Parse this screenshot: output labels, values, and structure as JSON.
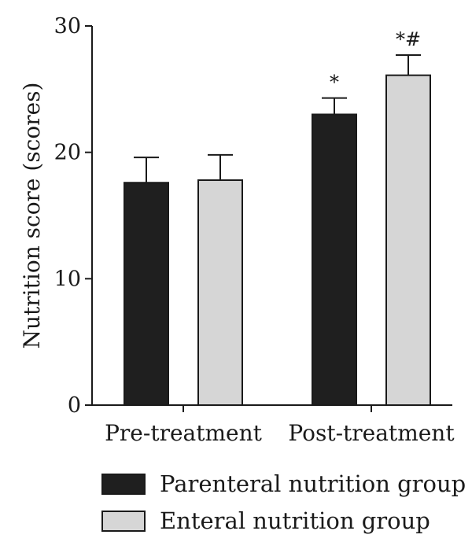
{
  "chart_data": {
    "type": "bar",
    "ylabel": "Nutrition score (scores)",
    "xlabel": "",
    "ylim": [
      0,
      30
    ],
    "yticks": [
      "0",
      "10",
      "20",
      "30"
    ],
    "categories": [
      "Pre-treatment",
      "Post-treatment"
    ],
    "series": [
      {
        "name": "Parenteral nutrition group",
        "color": "#1f1f1f",
        "values": [
          17.6,
          23.0
        ],
        "errors": [
          2.0,
          1.3
        ],
        "annotations": [
          "",
          "*"
        ]
      },
      {
        "name": "Enteral nutrition group",
        "color": "#d6d6d6",
        "values": [
          17.8,
          26.1
        ],
        "errors": [
          2.0,
          1.6
        ],
        "annotations": [
          "",
          "*#"
        ]
      }
    ],
    "legend_position": "bottom",
    "grid": false
  }
}
